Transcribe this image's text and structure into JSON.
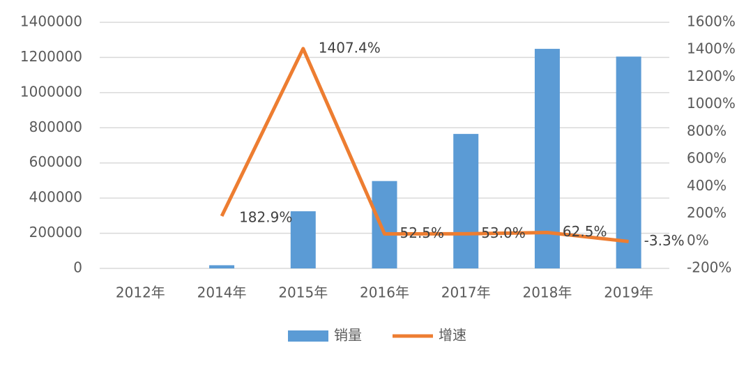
{
  "chart_data": {
    "type": "bar-line",
    "categories": [
      "2012年",
      "2014年",
      "2015年",
      "2016年",
      "2017年",
      "2018年",
      "2019年"
    ],
    "series": [
      {
        "name": "销量",
        "type": "bar",
        "color": "#5b9bd5",
        "values": [
          0,
          18000,
          325000,
          497000,
          765000,
          1249000,
          1205000
        ]
      },
      {
        "name": "增速",
        "type": "line",
        "axis": "y2",
        "color": "#ed7d31",
        "values": [
          null,
          182.9,
          1407.4,
          52.5,
          53.0,
          62.5,
          -3.3
        ],
        "value_labels": [
          null,
          "182.9%",
          "1407.4%",
          "52.5%",
          "53.0%",
          "62.5%",
          "-3.3%"
        ]
      }
    ],
    "ylim": [
      0,
      1400000
    ],
    "yticks": [
      0,
      200000,
      400000,
      600000,
      800000,
      1000000,
      1200000,
      1400000
    ],
    "y2lim": [
      -200,
      1600
    ],
    "y2ticks": [
      {
        "value": -200,
        "label": "-200%"
      },
      {
        "value": 0,
        "label": "0%"
      },
      {
        "value": 200,
        "label": "200%"
      },
      {
        "value": 400,
        "label": "400%"
      },
      {
        "value": 600,
        "label": "600%"
      },
      {
        "value": 800,
        "label": "800%"
      },
      {
        "value": 1000,
        "label": "1000%"
      },
      {
        "value": 1200,
        "label": "1200%"
      },
      {
        "value": 1400,
        "label": "1400%"
      },
      {
        "value": 1600,
        "label": "1600%"
      }
    ],
    "grid": true,
    "legend": "bottom"
  }
}
